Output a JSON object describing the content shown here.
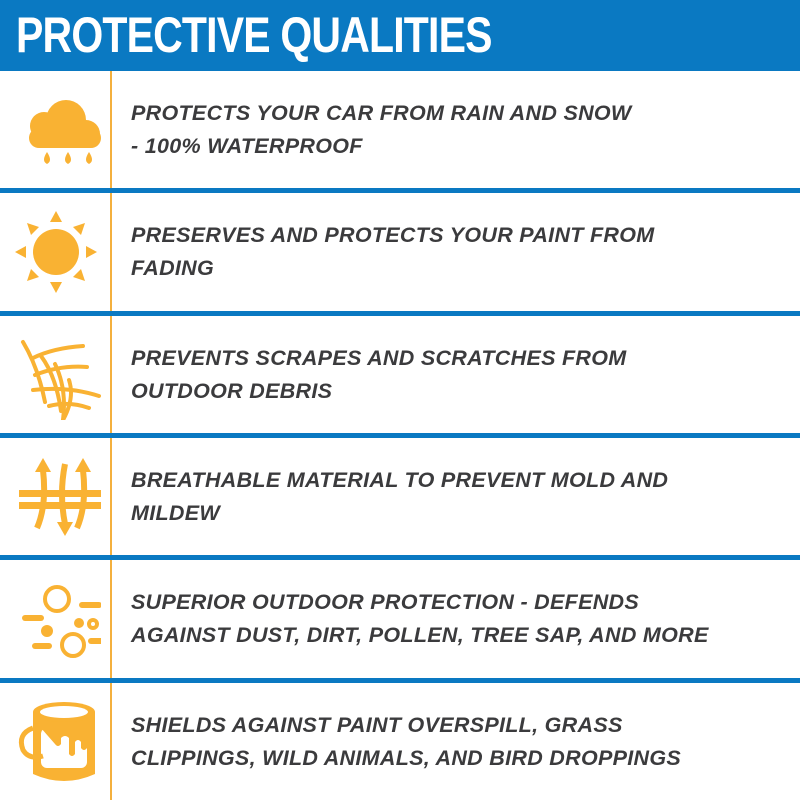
{
  "header": {
    "title": "PROTECTIVE QUALITIES"
  },
  "colors": {
    "brand_blue": "#0a79c2",
    "icon_gold": "#f9b233",
    "text": "#3b3b3d"
  },
  "items": [
    {
      "icon": "rain-cloud-icon",
      "lines": [
        "PROTECTS YOUR CAR FROM RAIN AND SNOW",
        "- 100% WATERPROOF"
      ]
    },
    {
      "icon": "sun-icon",
      "lines": [
        "PRESERVES AND PROTECTS YOUR PAINT FROM",
        "FADING"
      ]
    },
    {
      "icon": "scratches-icon",
      "lines": [
        "PREVENTS SCRAPES AND SCRATCHES FROM",
        "OUTDOOR DEBRIS"
      ]
    },
    {
      "icon": "breathable-arrows-icon",
      "lines": [
        "BREATHABLE MATERIAL TO PREVENT MOLD AND",
        "MILDEW"
      ]
    },
    {
      "icon": "dust-particles-icon",
      "lines": [
        "SUPERIOR OUTDOOR PROTECTION - DEFENDS",
        "AGAINST DUST, DIRT, POLLEN, TREE SAP, AND MORE"
      ]
    },
    {
      "icon": "paint-bucket-icon",
      "lines": [
        "SHIELDS AGAINST PAINT OVERSPILL, GRASS",
        "CLIPPINGS, WILD ANIMALS, AND BIRD DROPPINGS"
      ]
    }
  ]
}
